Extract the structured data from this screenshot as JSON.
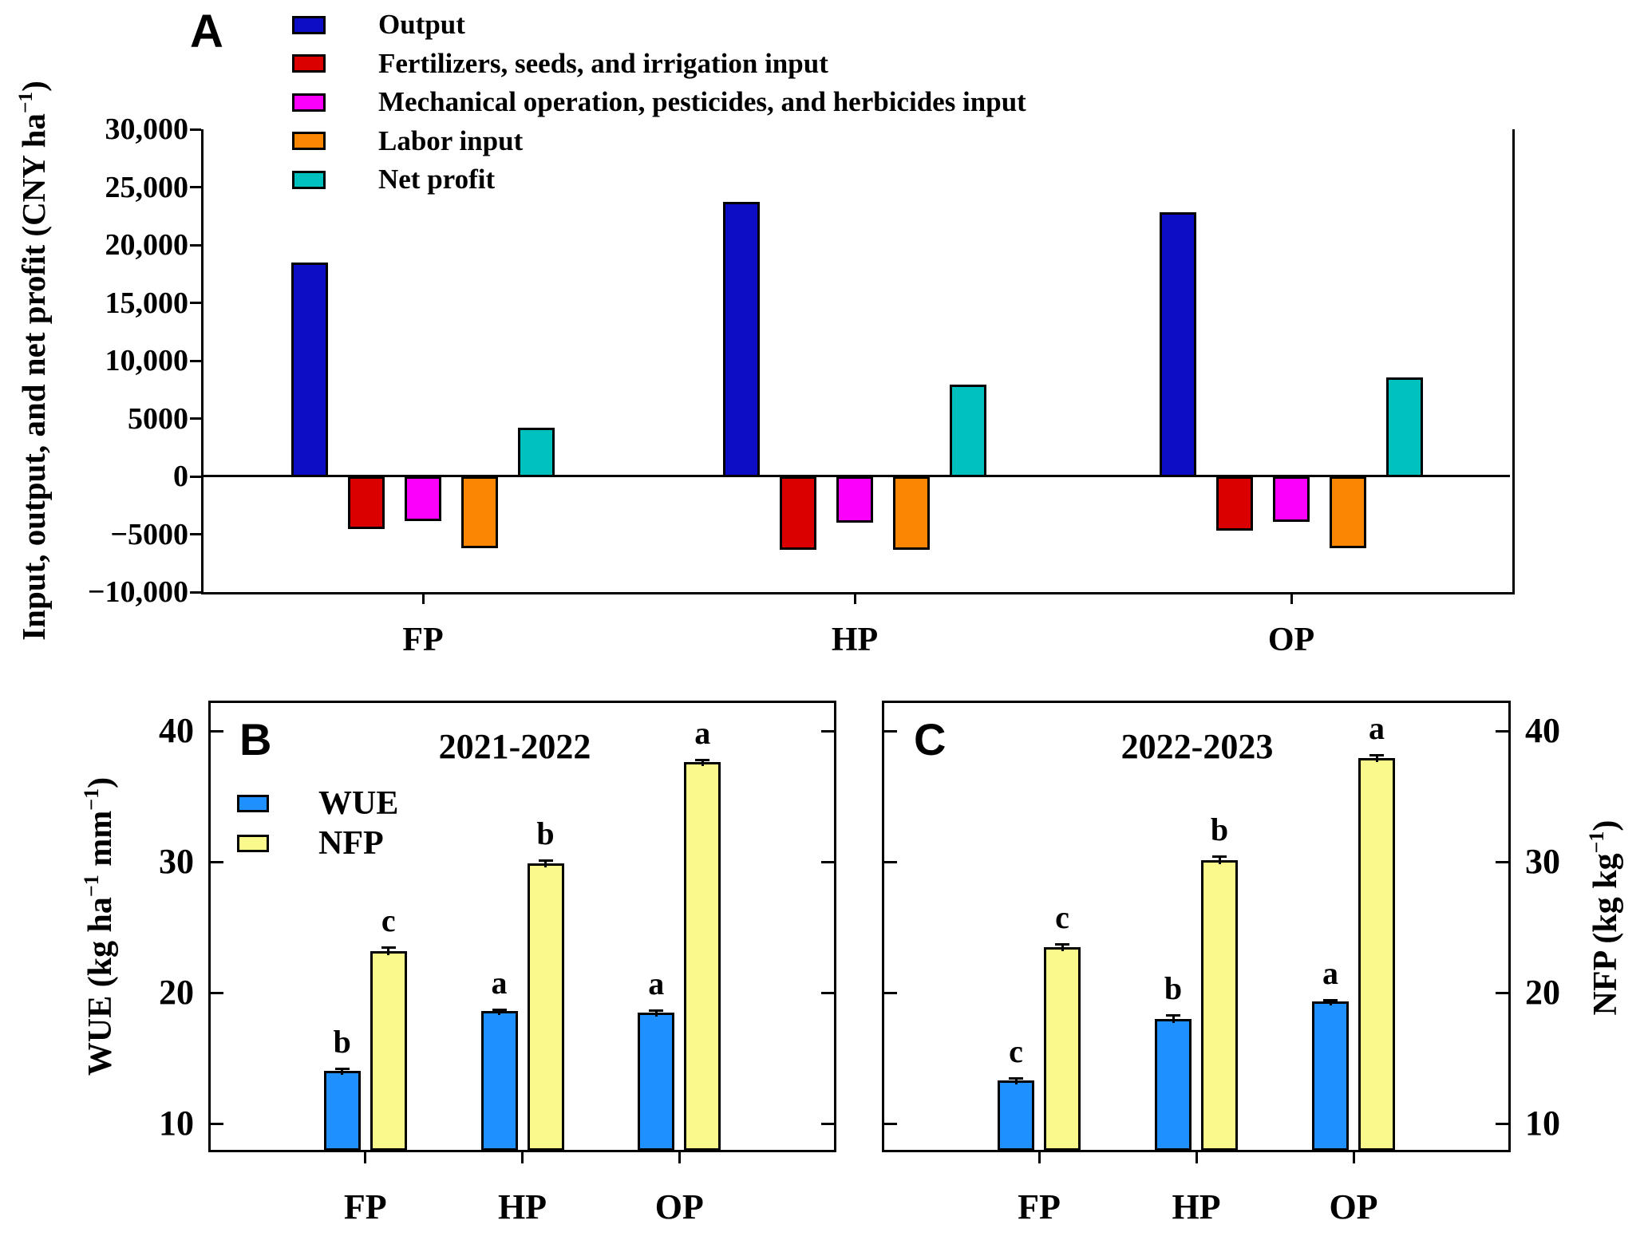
{
  "figure": {
    "background": "#FFFFFF",
    "axis_color": "#000000",
    "x_axis_categories": [
      "FP",
      "HP",
      "OP"
    ]
  },
  "chart_data": [
    {
      "id": "A",
      "type": "bar",
      "panel_label": "A",
      "ylabel_rich": "Input, output, and net profit (CNY ha<sup>−1</sup>)",
      "categories": [
        "FP",
        "HP",
        "OP"
      ],
      "series": [
        {
          "name": "Output",
          "color": "#0D0DC6",
          "values": [
            18500,
            23750,
            22800
          ]
        },
        {
          "name": "Fertilizers, seeds, and irrigation input",
          "color": "#DB0000",
          "values": [
            -4480,
            -6250,
            -4630
          ]
        },
        {
          "name": "Mechanical operation, pesticides, and herbicides input",
          "color": "#FB00FB",
          "values": [
            -3800,
            -3900,
            -3850
          ]
        },
        {
          "name": "Labor input",
          "color": "#FB8602",
          "values": [
            -6130,
            -6250,
            -6150
          ]
        },
        {
          "name": "Net profit",
          "color": "#00C1BE",
          "values": [
            4200,
            7900,
            8550
          ]
        }
      ],
      "ylim": [
        -10000,
        30000
      ],
      "yticks": [
        {
          "v": 30000,
          "label": "30,000"
        },
        {
          "v": 25000,
          "label": "25,000"
        },
        {
          "v": 20000,
          "label": "20,000"
        },
        {
          "v": 15000,
          "label": "15,000"
        },
        {
          "v": 10000,
          "label": "10,000"
        },
        {
          "v": 5000,
          "label": "5000"
        },
        {
          "v": 0,
          "label": "0"
        },
        {
          "v": -5000,
          "label": "−5000"
        },
        {
          "v": -10000,
          "label": "−10,000"
        }
      ],
      "legend_position": "top-left",
      "grid": false
    },
    {
      "id": "B",
      "type": "bar",
      "panel_label": "B",
      "title": "2021-2022",
      "ylabel_rich": "WUE (kg ha<sup>−1</sup> mm<sup>−1</sup>)",
      "categories": [
        "FP",
        "HP",
        "OP"
      ],
      "series": [
        {
          "name": "WUE",
          "color": "#1E90FF",
          "values": [
            14.0,
            18.6,
            18.5
          ],
          "errors": [
            0.2,
            0.15,
            0.15
          ],
          "letters": [
            "b",
            "a",
            "a"
          ]
        },
        {
          "name": "NFP",
          "color": "#FAF98C",
          "values": [
            23.2,
            29.9,
            37.6
          ],
          "errors": [
            0.3,
            0.25,
            0.2
          ],
          "letters": [
            "c",
            "b",
            "a"
          ]
        }
      ],
      "ylim": [
        8,
        42
      ],
      "yticks": [
        {
          "v": 10,
          "label": "10"
        },
        {
          "v": 20,
          "label": "20"
        },
        {
          "v": 30,
          "label": "30"
        },
        {
          "v": 40,
          "label": "40"
        }
      ],
      "tick_label_side": "left",
      "legend": [
        "WUE",
        "NFP"
      ],
      "grid": false
    },
    {
      "id": "C",
      "type": "bar",
      "panel_label": "C",
      "title": "2022-2023",
      "ylabel_rich": "NFP (kg kg<sup>−1</sup>)",
      "categories": [
        "FP",
        "HP",
        "OP"
      ],
      "series": [
        {
          "name": "WUE",
          "color": "#1E90FF",
          "values": [
            13.3,
            18.0,
            19.3
          ],
          "errors": [
            0.2,
            0.3,
            0.15
          ],
          "letters": [
            "c",
            "b",
            "a"
          ]
        },
        {
          "name": "NFP",
          "color": "#FAF98C",
          "values": [
            23.5,
            30.1,
            37.9
          ],
          "errors": [
            0.25,
            0.35,
            0.25
          ],
          "letters": [
            "c",
            "b",
            "a"
          ]
        }
      ],
      "ylim": [
        8,
        42
      ],
      "yticks": [
        {
          "v": 10,
          "label": "10"
        },
        {
          "v": 20,
          "label": "20"
        },
        {
          "v": 30,
          "label": "30"
        },
        {
          "v": 40,
          "label": "40"
        }
      ],
      "tick_label_side": "right",
      "grid": false
    }
  ]
}
